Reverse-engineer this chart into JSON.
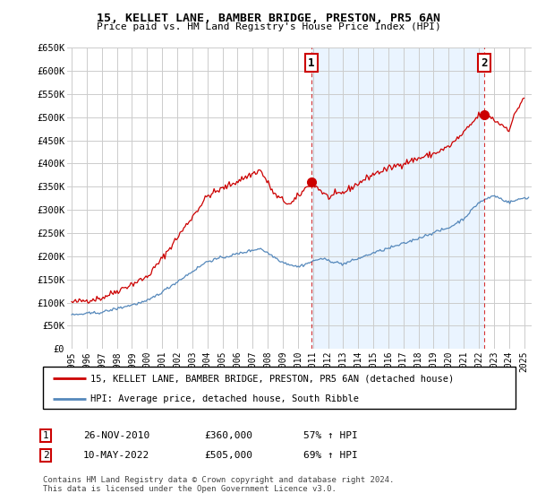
{
  "title": "15, KELLET LANE, BAMBER BRIDGE, PRESTON, PR5 6AN",
  "subtitle": "Price paid vs. HM Land Registry's House Price Index (HPI)",
  "ylabel_ticks": [
    "£0",
    "£50K",
    "£100K",
    "£150K",
    "£200K",
    "£250K",
    "£300K",
    "£350K",
    "£400K",
    "£450K",
    "£500K",
    "£550K",
    "£600K",
    "£650K"
  ],
  "ylim": [
    0,
    650000
  ],
  "yticks": [
    0,
    50000,
    100000,
    150000,
    200000,
    250000,
    300000,
    350000,
    400000,
    450000,
    500000,
    550000,
    600000,
    650000
  ],
  "xlim_start": 1994.7,
  "xlim_end": 2025.5,
  "sale1_x": 2010.9,
  "sale1_y": 360000,
  "sale1_label": "1",
  "sale2_x": 2022.36,
  "sale2_y": 505000,
  "sale2_label": "2",
  "red_line_color": "#cc0000",
  "blue_line_color": "#5588bb",
  "shade_color": "#ddeeff",
  "sale_dot_color": "#cc0000",
  "background_color": "#ffffff",
  "grid_color": "#cccccc",
  "legend_label_red": "15, KELLET LANE, BAMBER BRIDGE, PRESTON, PR5 6AN (detached house)",
  "legend_label_blue": "HPI: Average price, detached house, South Ribble",
  "annotation1_num": "1",
  "annotation1_date": "26-NOV-2010",
  "annotation1_price": "£360,000",
  "annotation1_hpi": "57% ↑ HPI",
  "annotation2_num": "2",
  "annotation2_date": "10-MAY-2022",
  "annotation2_price": "£505,000",
  "annotation2_hpi": "69% ↑ HPI",
  "footnote": "Contains HM Land Registry data © Crown copyright and database right 2024.\nThis data is licensed under the Open Government Licence v3.0.",
  "dashed_line1_x": 2010.9,
  "dashed_line2_x": 2022.36
}
